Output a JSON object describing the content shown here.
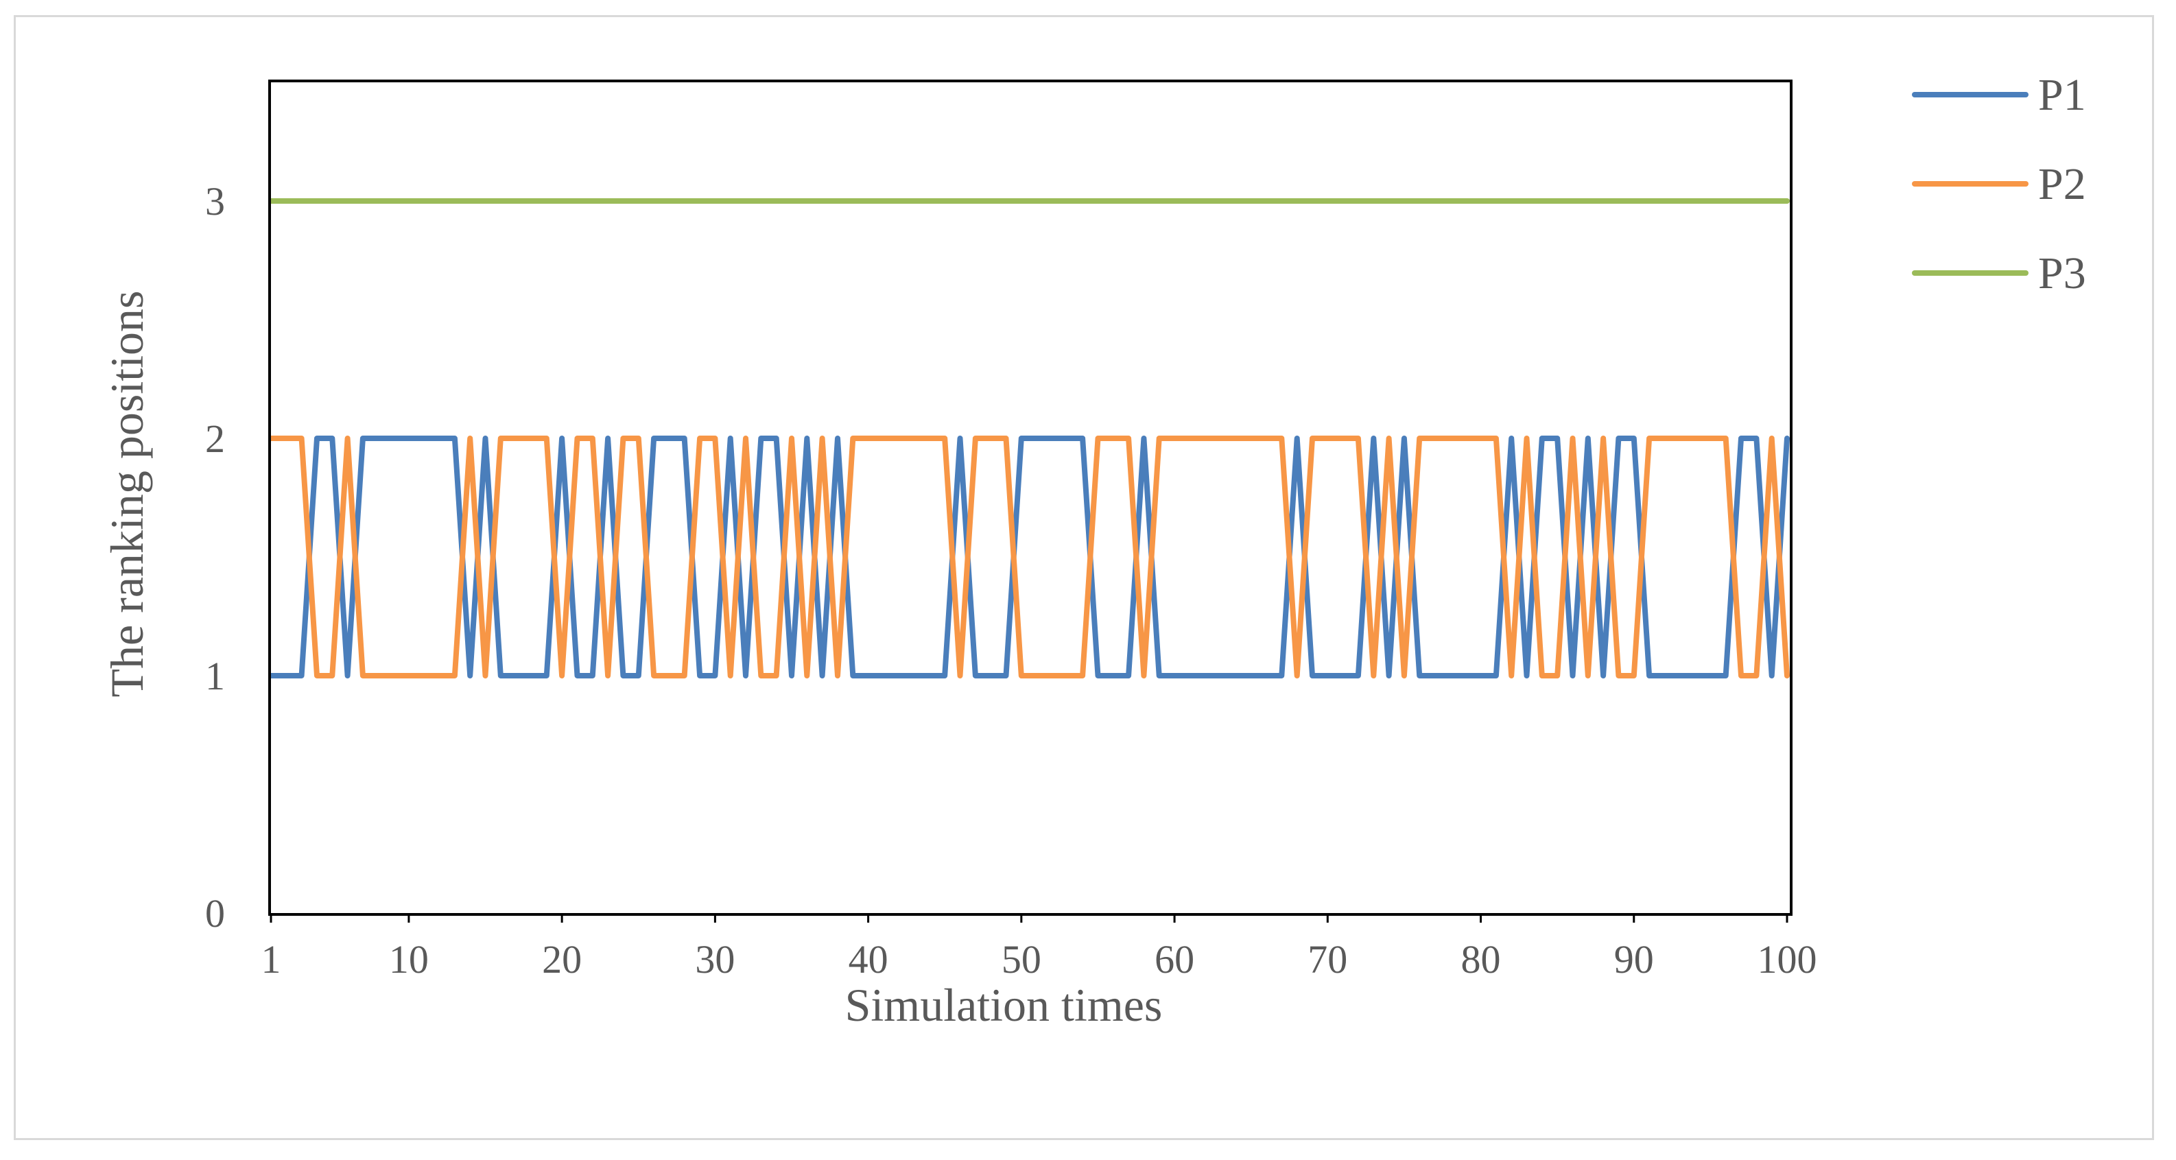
{
  "chart_data": {
    "type": "line",
    "title": "",
    "xlabel": "Simulation times",
    "ylabel": "The ranking positions",
    "xlim": [
      1,
      100
    ],
    "ylim": [
      0,
      3.5
    ],
    "x_ticks": [
      "1",
      "10",
      "20",
      "30",
      "40",
      "50",
      "60",
      "70",
      "80",
      "90",
      "100"
    ],
    "y_ticks": [
      "0",
      "1",
      "2",
      "3"
    ],
    "legend_position": "right",
    "series": [
      {
        "name": "P1",
        "color": "#4a7ebb",
        "values": [
          1,
          1,
          1,
          2,
          2,
          1,
          2,
          2,
          2,
          2,
          2,
          2,
          2,
          1,
          2,
          1,
          1,
          1,
          1,
          2,
          1,
          1,
          2,
          1,
          1,
          2,
          2,
          2,
          1,
          1,
          2,
          1,
          2,
          2,
          1,
          2,
          1,
          2,
          1,
          1,
          1,
          1,
          1,
          1,
          1,
          2,
          1,
          1,
          1,
          2,
          2,
          2,
          2,
          2,
          1,
          1,
          1,
          2,
          1,
          1,
          1,
          1,
          1,
          1,
          1,
          1,
          1,
          2,
          1,
          1,
          1,
          1,
          2,
          1,
          2,
          1,
          1,
          1,
          1,
          1,
          1,
          2,
          1,
          2,
          2,
          1,
          2,
          1,
          2,
          2,
          1,
          1,
          1,
          1,
          1,
          1,
          2,
          2,
          1,
          2
        ]
      },
      {
        "name": "P2",
        "color": "#f79646",
        "values": [
          2,
          2,
          2,
          1,
          1,
          2,
          1,
          1,
          1,
          1,
          1,
          1,
          1,
          2,
          1,
          2,
          2,
          2,
          2,
          1,
          2,
          2,
          1,
          2,
          2,
          1,
          1,
          1,
          2,
          2,
          1,
          2,
          1,
          1,
          2,
          1,
          2,
          1,
          2,
          2,
          2,
          2,
          2,
          2,
          2,
          1,
          2,
          2,
          2,
          1,
          1,
          1,
          1,
          1,
          2,
          2,
          2,
          1,
          2,
          2,
          2,
          2,
          2,
          2,
          2,
          2,
          2,
          1,
          2,
          2,
          2,
          2,
          1,
          2,
          1,
          2,
          2,
          2,
          2,
          2,
          2,
          1,
          2,
          1,
          1,
          2,
          1,
          2,
          1,
          1,
          2,
          2,
          2,
          2,
          2,
          2,
          1,
          1,
          2,
          1
        ]
      },
      {
        "name": "P3",
        "color": "#9bbb59",
        "values": [
          3,
          3,
          3,
          3,
          3,
          3,
          3,
          3,
          3,
          3,
          3,
          3,
          3,
          3,
          3,
          3,
          3,
          3,
          3,
          3,
          3,
          3,
          3,
          3,
          3,
          3,
          3,
          3,
          3,
          3,
          3,
          3,
          3,
          3,
          3,
          3,
          3,
          3,
          3,
          3,
          3,
          3,
          3,
          3,
          3,
          3,
          3,
          3,
          3,
          3,
          3,
          3,
          3,
          3,
          3,
          3,
          3,
          3,
          3,
          3,
          3,
          3,
          3,
          3,
          3,
          3,
          3,
          3,
          3,
          3,
          3,
          3,
          3,
          3,
          3,
          3,
          3,
          3,
          3,
          3,
          3,
          3,
          3,
          3,
          3,
          3,
          3,
          3,
          3,
          3,
          3,
          3,
          3,
          3,
          3,
          3,
          3,
          3,
          3,
          3
        ]
      }
    ]
  }
}
